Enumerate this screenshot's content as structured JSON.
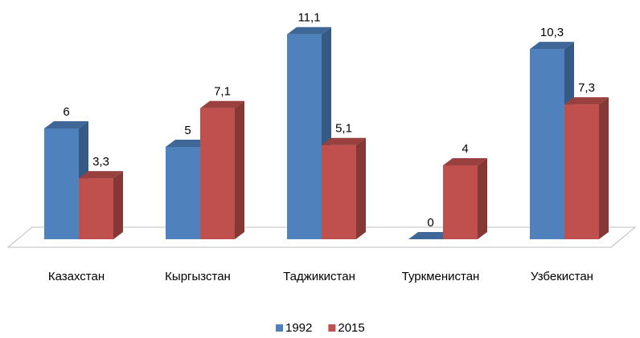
{
  "chart_data": {
    "type": "bar3d",
    "categories": [
      "Казахстан",
      "Кыргызстан",
      "Таджикистан",
      "Туркменистан",
      "Узбекистан"
    ],
    "series": [
      {
        "name": "1992",
        "color": "#4f81bd",
        "values": [
          6,
          5,
          11.1,
          0,
          10.3
        ],
        "value_labels": [
          "6",
          "5",
          "11,1",
          "0",
          "10,3"
        ]
      },
      {
        "name": "2015",
        "color": "#c0504d",
        "values": [
          3.3,
          7.1,
          5.1,
          4,
          7.3
        ],
        "value_labels": [
          "3,3",
          "7,1",
          "5,1",
          "4",
          "7,3"
        ]
      }
    ],
    "legend": "bottom"
  }
}
